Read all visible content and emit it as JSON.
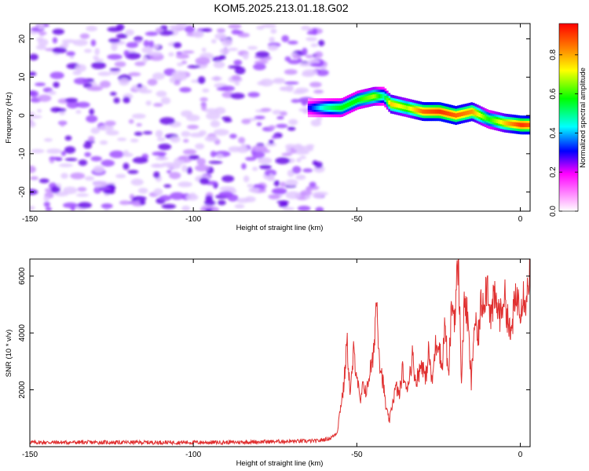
{
  "figure_title": "KOM5.2025.213.01.18.G02",
  "chart_data": [
    {
      "type": "heatmap",
      "xlabel": "Height of straight line (km)",
      "ylabel": "Frequency (Hz)",
      "xlim": [
        -150,
        3
      ],
      "ylim": [
        -25,
        24
      ],
      "x_ticks": [
        -150,
        -100,
        -50,
        0
      ],
      "y_ticks": [
        -20,
        -10,
        0,
        10,
        20
      ],
      "colorbar": {
        "label": "Normalized spectral amplitude",
        "range": [
          0.0,
          0.96
        ],
        "ticks": [
          0.0,
          0.2,
          0.4,
          0.6,
          0.8
        ],
        "colormap": [
          "#ffffff",
          "#ff00ff",
          "#0000ff",
          "#00ffff",
          "#00ff00",
          "#ffff00",
          "#ff8000",
          "#ff0000"
        ]
      },
      "noise_region": {
        "x_range": [
          -150,
          -60
        ],
        "freq_range": [
          -25,
          24
        ],
        "typical_amplitude": [
          0.02,
          0.2
        ]
      },
      "ridge": {
        "x": [
          -65,
          -60,
          -55,
          -50,
          -45,
          -42,
          -40,
          -35,
          -30,
          -25,
          -20,
          -15,
          -10,
          -5,
          0,
          3
        ],
        "frequency": [
          2,
          2,
          2,
          4,
          5,
          5,
          3,
          2,
          1,
          1,
          0,
          1,
          -1,
          -2,
          -2.5,
          -2.5
        ],
        "amplitude": [
          0.3,
          0.5,
          0.6,
          0.6,
          0.7,
          0.5,
          0.8,
          0.7,
          0.9,
          0.95,
          0.9,
          0.85,
          0.6,
          0.8,
          0.95,
          0.9
        ]
      }
    },
    {
      "type": "line",
      "xlabel": "Height of straight line (km)",
      "ylabel": "SNR (10 * v/v)",
      "xlim": [
        -150,
        3
      ],
      "ylim": [
        0,
        6600
      ],
      "x_ticks": [
        -150,
        -100,
        -50,
        0
      ],
      "y_ticks": [
        2000,
        4000,
        6000
      ],
      "color": "#e03030",
      "series": [
        {
          "x": [
            -150,
            -120,
            -90,
            -75,
            -62,
            -58,
            -56,
            -55,
            -54,
            -53,
            -52,
            -51,
            -50,
            -49,
            -48,
            -47,
            -46,
            -45,
            -44,
            -43,
            -42,
            -41,
            -40,
            -39,
            -38,
            -37,
            -36,
            -35,
            -34,
            -33,
            -32,
            -31,
            -30,
            -29,
            -28,
            -27,
            -26,
            -25,
            -24,
            -23,
            -22,
            -21,
            -20,
            -19,
            -18,
            -17,
            -16,
            -15,
            -14,
            -13,
            -12,
            -11,
            -10,
            -9,
            -8,
            -7,
            -6,
            -5,
            -4,
            -3,
            -2,
            -1,
            0,
            1,
            2,
            3
          ],
          "y": [
            150,
            150,
            150,
            180,
            200,
            300,
            500,
            1400,
            2100,
            3700,
            1800,
            3300,
            2600,
            1500,
            2200,
            1900,
            2700,
            3000,
            5300,
            3000,
            2300,
            1300,
            900,
            1600,
            2100,
            1800,
            2700,
            2000,
            2400,
            3200,
            2300,
            2600,
            3000,
            2300,
            3400,
            2200,
            3500,
            3800,
            2700,
            4400,
            2300,
            5000,
            4600,
            6600,
            2400,
            5300,
            4300,
            2200,
            4500,
            3700,
            5000,
            5300,
            5800,
            4500,
            5200,
            4900,
            4600,
            5400,
            4700,
            3800,
            4800,
            5300,
            5000,
            5400,
            5200,
            6600
          ]
        }
      ]
    }
  ]
}
